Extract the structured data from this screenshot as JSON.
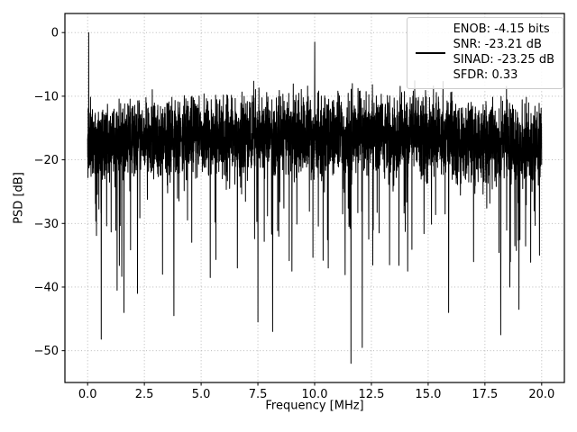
{
  "figure": {
    "background": "#ffffff",
    "axes_background": "#ffffff",
    "spine_color": "#000000",
    "grid_color": "#b0b0b0",
    "tick_color": "#000000",
    "legend_border_color": "#cccccc",
    "line_color": "#000000"
  },
  "chart_data": {
    "type": "line",
    "title": "",
    "xlabel": "Frequency [MHz]",
    "ylabel": "PSD [dB]",
    "grid": true,
    "legend_position": "upper right",
    "xlim": [
      -1,
      21
    ],
    "ylim": [
      -55,
      3
    ],
    "xticks": [
      0.0,
      2.5,
      5.0,
      7.5,
      10.0,
      12.5,
      15.0,
      17.5,
      20.0
    ],
    "xtick_labels": [
      "0.0",
      "2.5",
      "5.0",
      "7.5",
      "10.0",
      "12.5",
      "15.0",
      "17.5",
      "20.0"
    ],
    "yticks": [
      0,
      -10,
      -20,
      -30,
      -40,
      -50
    ],
    "ytick_labels": [
      "0",
      "−10",
      "−20",
      "−30",
      "−40",
      "−50"
    ],
    "legend": {
      "entries": [
        "ENOB: -4.15 bits",
        "SNR: -23.21 dB",
        "SINAD: -23.25 dB",
        "SFDR: 0.33"
      ]
    },
    "series": [
      {
        "name": "PSD",
        "color": "#000000",
        "noise_band": {
          "n_points": 4096,
          "x_range": [
            0,
            20
          ],
          "center_db": -17.5,
          "center_bow_db": 1.5,
          "half_spread_db": 9,
          "up_spike_probability": 0.05,
          "up_spike_extra_db": 3,
          "down_spike_probability": 0.035,
          "down_spike_extra_db": 18,
          "floor_db": -53,
          "seed": 11
        },
        "peaks": [
          {
            "x": 0.05,
            "y": 0
          },
          {
            "x": 10.0,
            "y": -1.5
          }
        ],
        "notches": [
          {
            "x": 0.6,
            "y": -48.2
          },
          {
            "x": 1.3,
            "y": -40.5
          },
          {
            "x": 1.6,
            "y": -44.0
          },
          {
            "x": 2.2,
            "y": -41.0
          },
          {
            "x": 3.3,
            "y": -38.0
          },
          {
            "x": 3.8,
            "y": -44.5
          },
          {
            "x": 5.4,
            "y": -38.5
          },
          {
            "x": 6.6,
            "y": -37.0
          },
          {
            "x": 7.5,
            "y": -45.5
          },
          {
            "x": 8.15,
            "y": -47.0
          },
          {
            "x": 9.0,
            "y": -37.5
          },
          {
            "x": 10.6,
            "y": -37.0
          },
          {
            "x": 11.6,
            "y": -52.0
          },
          {
            "x": 12.1,
            "y": -49.5
          },
          {
            "x": 13.3,
            "y": -36.5
          },
          {
            "x": 14.1,
            "y": -37.5
          },
          {
            "x": 15.9,
            "y": -44.0
          },
          {
            "x": 17.0,
            "y": -36.0
          },
          {
            "x": 18.2,
            "y": -47.5
          },
          {
            "x": 18.6,
            "y": -40.0
          },
          {
            "x": 19.0,
            "y": -43.5
          },
          {
            "x": 19.9,
            "y": -35.0
          }
        ]
      }
    ]
  }
}
